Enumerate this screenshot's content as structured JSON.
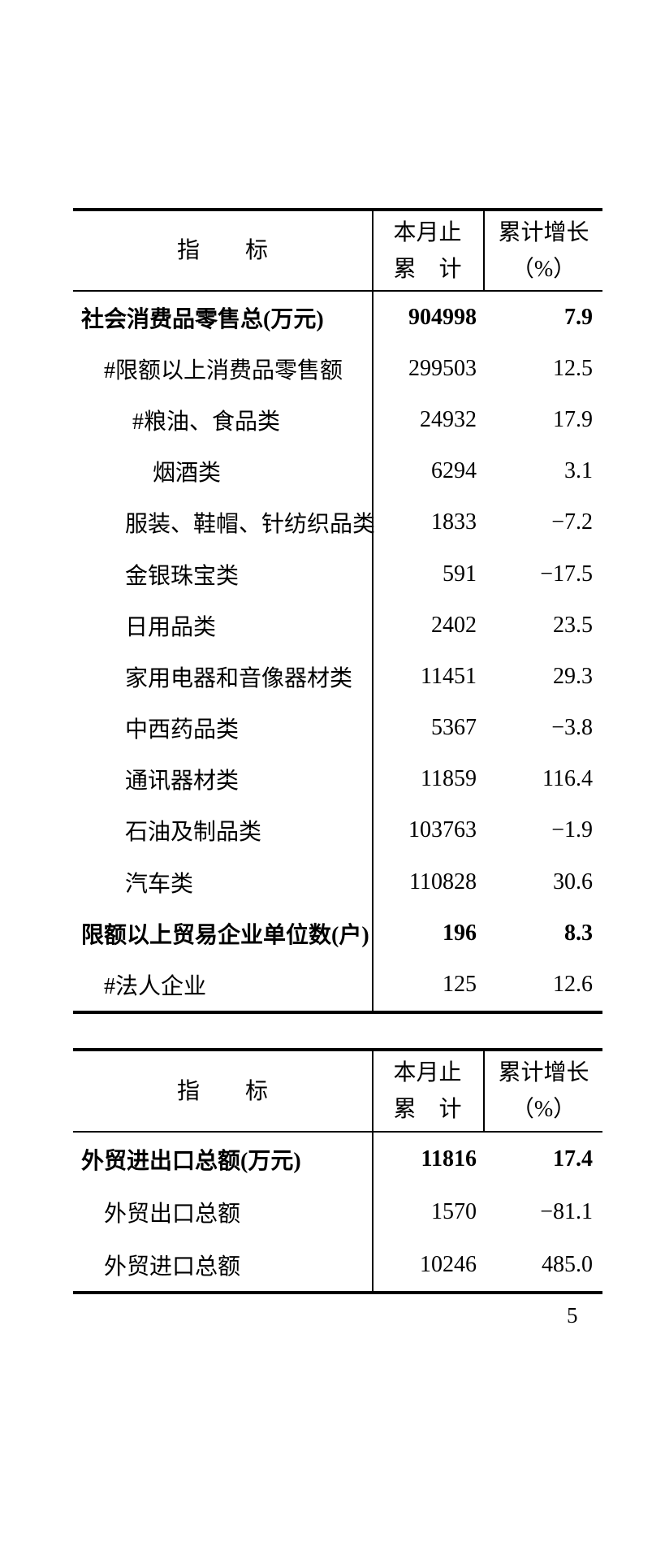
{
  "page": {
    "number": "5"
  },
  "header_labels": {
    "indicator": "指　　标",
    "cumulative_line1": "本月止",
    "cumulative_line2": "累　计",
    "growth_line1": "累计增长",
    "growth_line2": "（%）"
  },
  "tables": [
    {
      "name": "consumer-retail-indicators",
      "rows": [
        {
          "label": "社会消费品零售总(万元)",
          "value": "904998",
          "growth": "7.9",
          "bold": true,
          "level": 0
        },
        {
          "label": "#限额以上消费品零售额",
          "value": "299503",
          "growth": "12.5",
          "bold": false,
          "level": 1
        },
        {
          "label": "#粮油、食品类",
          "value": "24932",
          "growth": "17.9",
          "bold": false,
          "level": 3
        },
        {
          "label": "烟酒类",
          "value": "6294",
          "growth": "3.1",
          "bold": false,
          "level": 4
        },
        {
          "label": "服装、鞋帽、针纺织品类",
          "value": "1833",
          "growth": "−7.2",
          "bold": false,
          "level": 2
        },
        {
          "label": "金银珠宝类",
          "value": "591",
          "growth": "−17.5",
          "bold": false,
          "level": 2
        },
        {
          "label": "日用品类",
          "value": "2402",
          "growth": "23.5",
          "bold": false,
          "level": 2
        },
        {
          "label": "家用电器和音像器材类",
          "value": "11451",
          "growth": "29.3",
          "bold": false,
          "level": 2
        },
        {
          "label": "中西药品类",
          "value": "5367",
          "growth": "−3.8",
          "bold": false,
          "level": 2
        },
        {
          "label": "通讯器材类",
          "value": "11859",
          "growth": "116.4",
          "bold": false,
          "level": 2
        },
        {
          "label": "石油及制品类",
          "value": "103763",
          "growth": "−1.9",
          "bold": false,
          "level": 2
        },
        {
          "label": "汽车类",
          "value": "110828",
          "growth": "30.6",
          "bold": false,
          "level": 2
        },
        {
          "label": "限额以上贸易企业单位数(户)",
          "value": "196",
          "growth": "8.3",
          "bold": true,
          "level": 0
        },
        {
          "label": "#法人企业",
          "value": "125",
          "growth": "12.6",
          "bold": false,
          "level": 1
        }
      ]
    },
    {
      "name": "foreign-trade-indicators",
      "rows": [
        {
          "label": "外贸进出口总额(万元)",
          "value": "11816",
          "growth": "17.4",
          "bold": true,
          "level": 0
        },
        {
          "label": "外贸出口总额",
          "value": "1570",
          "growth": "−81.1",
          "bold": false,
          "level": 1
        },
        {
          "label": "外贸进口总额",
          "value": "10246",
          "growth": "485.0",
          "bold": false,
          "level": 1
        }
      ]
    }
  ]
}
